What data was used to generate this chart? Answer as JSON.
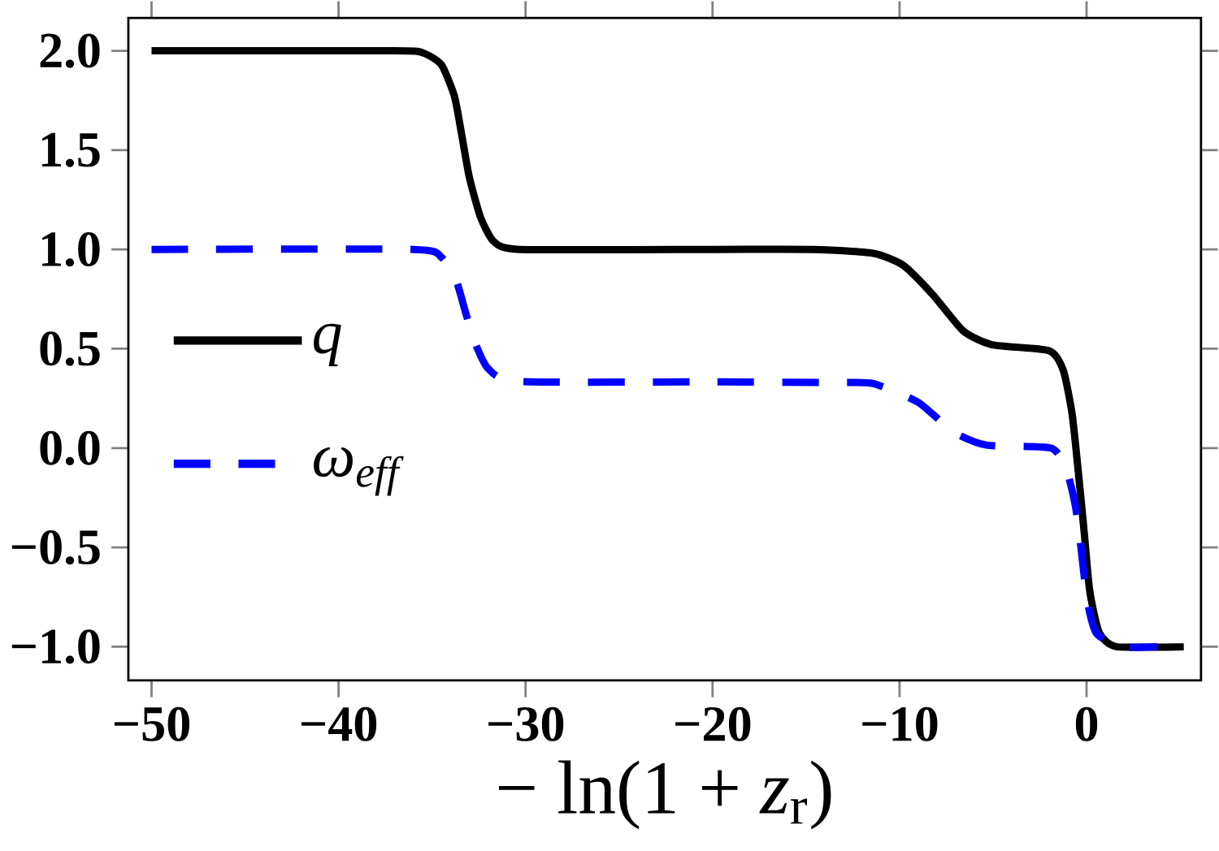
{
  "chart_data": {
    "type": "line",
    "xlabel": "− ln(1 + *z*$_{r}$)",
    "xlim": [
      -51.24,
      6.12
    ],
    "ylim": [
      -1.169,
      2.165
    ],
    "xticks": [
      {
        "value": -50,
        "label": "−50"
      },
      {
        "value": -40,
        "label": "−40"
      },
      {
        "value": -30,
        "label": "−30"
      },
      {
        "value": -20,
        "label": "−20"
      },
      {
        "value": -10,
        "label": "−10"
      },
      {
        "value": 0,
        "label": "0"
      }
    ],
    "yticks": [
      {
        "value": 2,
        "label": "2.0"
      },
      {
        "value": 1.5,
        "label": "1.5"
      },
      {
        "value": 1,
        "label": "1.0"
      },
      {
        "value": 0.5,
        "label": "0.5"
      },
      {
        "value": 0,
        "label": "0.0"
      },
      {
        "value": -0.5,
        "label": "−0.5"
      },
      {
        "value": -1,
        "label": "−1.0"
      }
    ],
    "legend": "left",
    "grid": false,
    "series": [
      {
        "name": "q",
        "color": "#000000",
        "line_style": "solid",
        "x": [
          -50,
          -37,
          -35.5,
          -34.5,
          -33.8,
          -33.4,
          -33.0,
          -32.4,
          -31.7,
          -30.3,
          -20,
          -14.6,
          -11.4,
          -9.8,
          -8.2,
          -6.6,
          -5.05,
          -2.0,
          -1.24,
          -0.77,
          -0.43,
          -0.13,
          0.17,
          0.68,
          1.6,
          5.2
        ],
        "values": [
          2.0,
          2.0,
          1.99,
          1.93,
          1.77,
          1.57,
          1.36,
          1.16,
          1.04,
          1.0,
          1.0,
          1.0,
          0.98,
          0.92,
          0.77,
          0.59,
          0.52,
          0.49,
          0.39,
          0.17,
          -0.13,
          -0.42,
          -0.72,
          -0.93,
          -1.0,
          -1.0
        ]
      },
      {
        "name": "ω$_{eff}$",
        "color": "#0000ff",
        "line_style": "dashed",
        "x": [
          -50,
          -36,
          -34.5,
          -33.7,
          -33.2,
          -32.7,
          -32.0,
          -30.4,
          -20,
          -13.3,
          -11.4,
          -9.0,
          -7.1,
          -5.35,
          -1.9,
          -1.07,
          -0.6,
          -0.3,
          0.04,
          0.51,
          1.76,
          3.77
        ],
        "values": [
          1.0,
          1.0,
          0.96,
          0.84,
          0.68,
          0.53,
          0.4,
          0.335,
          0.333,
          0.33,
          0.325,
          0.23,
          0.08,
          0.015,
          0.0,
          -0.11,
          -0.29,
          -0.5,
          -0.77,
          -0.93,
          -1.0,
          -1.0
        ]
      }
    ]
  }
}
